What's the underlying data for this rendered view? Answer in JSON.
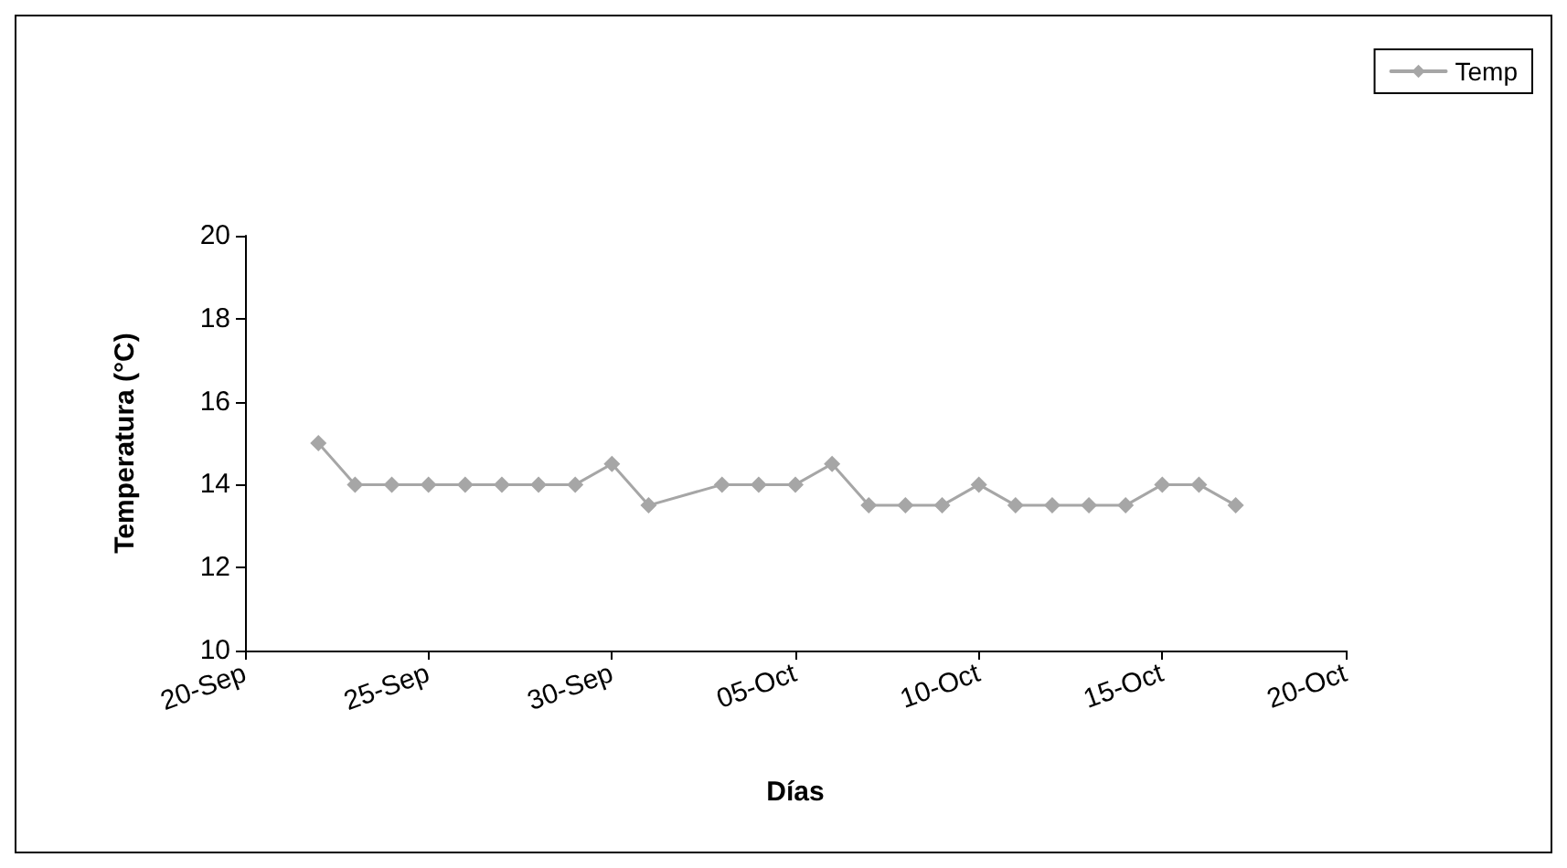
{
  "chart_data": {
    "type": "line",
    "xlabel": "Días",
    "ylabel": "Temperatura (°C)",
    "x": [
      "--09-22",
      "--09-23",
      "--09-24",
      "--09-25",
      "--09-26",
      "--09-27",
      "--09-28",
      "--09-29",
      "--09-30",
      "--10-01",
      "--10-03",
      "--10-04",
      "--10-05",
      "--10-06",
      "--10-07",
      "--10-08",
      "--10-09",
      "--10-10",
      "--10-11",
      "--10-12",
      "--10-13",
      "--10-14",
      "--10-15",
      "--10-16",
      "--10-17"
    ],
    "series": [
      {
        "name": "Temp",
        "color": "#a6a6a6",
        "values": [
          15,
          14,
          14,
          14,
          14,
          14,
          14,
          14,
          14.5,
          13.5,
          14,
          14,
          14,
          14.5,
          13.5,
          13.5,
          13.5,
          14,
          13.5,
          13.5,
          13.5,
          13.5,
          14,
          14,
          13.5
        ]
      }
    ],
    "xlim": [
      "--09-20",
      "--10-20"
    ],
    "xticks": [
      {
        "value": "--09-20",
        "label": "20-Sep"
      },
      {
        "value": "--09-25",
        "label": "25-Sep"
      },
      {
        "value": "--09-30",
        "label": "30-Sep"
      },
      {
        "value": "--10-05",
        "label": "05-Oct"
      },
      {
        "value": "--10-10",
        "label": "10-Oct"
      },
      {
        "value": "--10-15",
        "label": "15-Oct"
      },
      {
        "value": "--10-20",
        "label": "20-Oct"
      }
    ],
    "ylim": [
      10,
      20
    ],
    "yticks": [
      10,
      12,
      14,
      16,
      18,
      20
    ],
    "grid": false,
    "legend": "top right",
    "marker": "diamond",
    "line_style": "solid"
  }
}
